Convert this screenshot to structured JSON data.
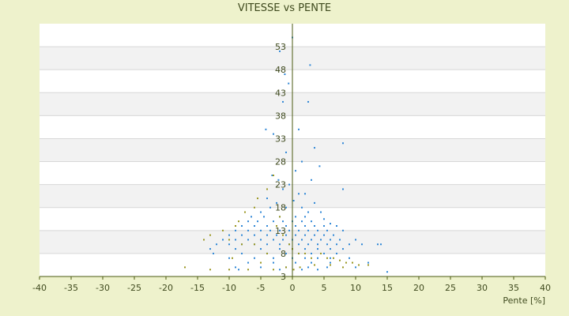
{
  "chart_data": {
    "type": "scatter",
    "title": "VITESSE vs PENTE",
    "xlabel": "Pente [%]",
    "ylabel": "",
    "xlim": [
      -40,
      40
    ],
    "ylim": [
      3,
      58
    ],
    "x_ticks": [
      -40,
      -35,
      -30,
      -25,
      -20,
      -15,
      -10,
      -5,
      0,
      5,
      10,
      15,
      20,
      25,
      30,
      35,
      40
    ],
    "y_ticks": [
      3,
      8,
      13,
      18,
      23,
      28,
      33,
      38,
      43,
      48,
      53
    ],
    "grid": true,
    "legend": "none",
    "colors": {
      "background": "#EEF2CC",
      "plot_band_a": "#FFFFFF",
      "plot_band_b": "#F2F2F2",
      "axis": "#4A5A10",
      "text": "#3F4A1E",
      "series_blue": "#2F87D6",
      "series_olive": "#9A9620"
    },
    "series": [
      {
        "color": "#2F87D6",
        "points": [
          [
            0.0,
            55
          ],
          [
            -2.0,
            52
          ],
          [
            2.8,
            49
          ],
          [
            -1.2,
            47
          ],
          [
            -0.6,
            45
          ],
          [
            2.5,
            41
          ],
          [
            -1.5,
            41
          ],
          [
            -3.0,
            34
          ],
          [
            -4.2,
            35
          ],
          [
            1.0,
            35
          ],
          [
            8.0,
            32
          ],
          [
            3.5,
            31
          ],
          [
            -1.0,
            30
          ],
          [
            1.5,
            28
          ],
          [
            4.3,
            27
          ],
          [
            -3.2,
            25
          ],
          [
            -2.2,
            24
          ],
          [
            0.5,
            26
          ],
          [
            3.0,
            24
          ],
          [
            8.0,
            22
          ],
          [
            -0.5,
            23
          ],
          [
            2.0,
            21
          ],
          [
            -4.0,
            20
          ],
          [
            -1.5,
            22
          ],
          [
            1.0,
            21
          ],
          [
            0.2,
            19.5
          ],
          [
            -2.5,
            19
          ],
          [
            3.5,
            19
          ],
          [
            -5.0,
            17
          ],
          [
            -3.5,
            18
          ],
          [
            -1.0,
            18
          ],
          [
            1.5,
            18
          ],
          [
            2.5,
            17
          ],
          [
            4.5,
            17
          ],
          [
            -6.5,
            16
          ],
          [
            -4.5,
            16
          ],
          [
            -2.0,
            16
          ],
          [
            0.5,
            16
          ],
          [
            2.0,
            16
          ],
          [
            5.0,
            15.5
          ],
          [
            -7.0,
            15
          ],
          [
            -5.5,
            15
          ],
          [
            -3.0,
            15
          ],
          [
            -1.5,
            15
          ],
          [
            0.0,
            15
          ],
          [
            1.5,
            15
          ],
          [
            3.0,
            15
          ],
          [
            6.0,
            14.5
          ],
          [
            -8.0,
            14
          ],
          [
            -6.0,
            14
          ],
          [
            -4.0,
            14
          ],
          [
            -2.5,
            14
          ],
          [
            -1.0,
            14
          ],
          [
            0.5,
            14
          ],
          [
            2.0,
            14
          ],
          [
            3.5,
            14
          ],
          [
            5.0,
            14
          ],
          [
            7.0,
            14
          ],
          [
            -9.0,
            13
          ],
          [
            -7.0,
            13
          ],
          [
            -5.0,
            13
          ],
          [
            -3.5,
            13
          ],
          [
            -2.0,
            13
          ],
          [
            -0.5,
            13
          ],
          [
            1.0,
            13
          ],
          [
            2.5,
            13
          ],
          [
            4.0,
            13
          ],
          [
            5.5,
            13
          ],
          [
            8.0,
            13
          ],
          [
            -10.0,
            12
          ],
          [
            -8.0,
            12
          ],
          [
            -6.0,
            12
          ],
          [
            -4.0,
            12
          ],
          [
            -2.5,
            12
          ],
          [
            -1.0,
            12
          ],
          [
            0.5,
            12
          ],
          [
            2.0,
            12
          ],
          [
            3.5,
            12
          ],
          [
            5.0,
            12
          ],
          [
            6.5,
            12
          ],
          [
            -11.0,
            11
          ],
          [
            -9.0,
            11
          ],
          [
            -7.0,
            11
          ],
          [
            -5.0,
            11
          ],
          [
            -3.0,
            11
          ],
          [
            -1.5,
            11
          ],
          [
            0.0,
            11
          ],
          [
            1.5,
            11
          ],
          [
            3.0,
            11
          ],
          [
            4.5,
            11
          ],
          [
            6.0,
            11
          ],
          [
            7.5,
            11
          ],
          [
            10.0,
            11
          ],
          [
            -12.0,
            10
          ],
          [
            -10.0,
            10
          ],
          [
            -8.0,
            10
          ],
          [
            -6.0,
            10
          ],
          [
            -4.0,
            10
          ],
          [
            -2.0,
            10
          ],
          [
            -0.5,
            10
          ],
          [
            1.0,
            10
          ],
          [
            2.5,
            10
          ],
          [
            4.0,
            10
          ],
          [
            5.5,
            10
          ],
          [
            7.0,
            10
          ],
          [
            9.0,
            10
          ],
          [
            11.0,
            10
          ],
          [
            13.5,
            10
          ],
          [
            14.0,
            10
          ],
          [
            -13.0,
            9
          ],
          [
            -9.0,
            9
          ],
          [
            -5.0,
            9
          ],
          [
            -2.0,
            9
          ],
          [
            0.0,
            9
          ],
          [
            2.0,
            9
          ],
          [
            4.0,
            9
          ],
          [
            6.0,
            9
          ],
          [
            8.0,
            9
          ],
          [
            -12.5,
            8
          ],
          [
            -8.0,
            8
          ],
          [
            -4.0,
            8
          ],
          [
            -1.0,
            8
          ],
          [
            1.0,
            8
          ],
          [
            3.0,
            8
          ],
          [
            5.0,
            8
          ],
          [
            7.0,
            8
          ],
          [
            -10.0,
            7
          ],
          [
            -6.0,
            7
          ],
          [
            -3.0,
            7
          ],
          [
            0.0,
            7
          ],
          [
            2.0,
            7
          ],
          [
            4.0,
            7
          ],
          [
            6.0,
            7
          ],
          [
            9.0,
            7
          ],
          [
            -7.0,
            6
          ],
          [
            -3.0,
            6
          ],
          [
            0.5,
            6
          ],
          [
            3.0,
            6
          ],
          [
            6.0,
            6
          ],
          [
            12.0,
            6
          ],
          [
            -9.0,
            5
          ],
          [
            -5.0,
            5
          ],
          [
            -1.0,
            5
          ],
          [
            2.5,
            5
          ],
          [
            5.5,
            5
          ],
          [
            10.0,
            5
          ],
          [
            -8.5,
            4.5
          ],
          [
            -2.0,
            4.5
          ],
          [
            1.5,
            4.5
          ],
          [
            4.0,
            4.5
          ],
          [
            15.0,
            4
          ]
        ]
      },
      {
        "color": "#9A9620",
        "points": [
          [
            -3.0,
            25
          ],
          [
            -4.0,
            22
          ],
          [
            -5.5,
            20
          ],
          [
            -6.0,
            18
          ],
          [
            -7.5,
            17
          ],
          [
            -8.5,
            15
          ],
          [
            -9.0,
            14
          ],
          [
            -11.0,
            13
          ],
          [
            -13.0,
            12
          ],
          [
            -14.0,
            11
          ],
          [
            -10.0,
            11
          ],
          [
            -8.0,
            10
          ],
          [
            -6.0,
            10
          ],
          [
            -2.0,
            16
          ],
          [
            -2.5,
            14
          ],
          [
            -1.5,
            12
          ],
          [
            -0.5,
            10
          ],
          [
            0.0,
            9
          ],
          [
            1.0,
            8
          ],
          [
            2.0,
            8
          ],
          [
            3.0,
            7
          ],
          [
            4.5,
            8
          ],
          [
            5.5,
            7
          ],
          [
            6.5,
            7
          ],
          [
            7.5,
            6.5
          ],
          [
            8.5,
            6
          ],
          [
            9.5,
            6
          ],
          [
            10.5,
            5.5
          ],
          [
            12.0,
            5.5
          ],
          [
            -17.0,
            5
          ],
          [
            -13.0,
            4.5
          ],
          [
            -10.0,
            4.5
          ],
          [
            -7.0,
            4.5
          ],
          [
            -3.0,
            4.5
          ],
          [
            -1.0,
            5
          ],
          [
            0.2,
            4.5
          ],
          [
            1.2,
            5
          ],
          [
            3.5,
            5.5
          ],
          [
            6.0,
            5.5
          ],
          [
            8.0,
            5
          ],
          [
            -5.0,
            6
          ],
          [
            -4.0,
            8
          ],
          [
            -9.5,
            7
          ]
        ]
      }
    ]
  }
}
